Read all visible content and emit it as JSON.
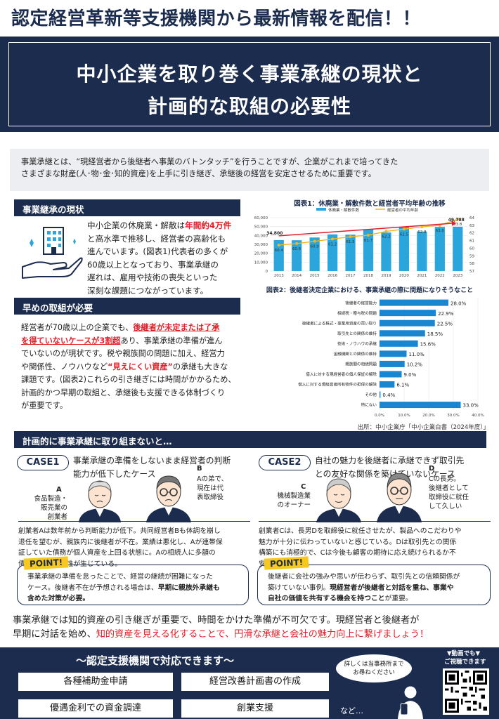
{
  "header": {
    "banner": "認定経営革新等支援機関から最新情報を配信！！",
    "title_line1": "中小企業を取り巻く事業承継の現状と",
    "title_line2": "計画的な取組の必要性"
  },
  "intro": {
    "line1": "事業承継とは、“現経営者から後継者へ事業のバトンタッチ”を行うことですが、企業がこれまで培ってきた",
    "line2": "さまざまな財産(人･物･金･知的資産)を上手に引き継ぎ、承継後の経営を安定させるために重要です。"
  },
  "section1": {
    "title": "事業継承の現状",
    "p1": "中小企業の休廃業・解散は",
    "p1_hl": "年間約4万件",
    "p2": "と高水準で推移し、経営者の高齢化も",
    "p3": "進んでいます。(図表1)代表者の多くが",
    "p4": "60歳以上となっており、事業承継の",
    "p5": "遅れは、雇用や技術の喪失といった",
    "p6": "深刻な課題につながっています。"
  },
  "section2": {
    "title": "早めの取組が必要",
    "l1a": "経営者が70歳以上の企業でも、",
    "l1b": "後継者が未定または了承",
    "l2a": "を得ていないケースが3割超",
    "l2b": "あり、事業承継の準備が進ん",
    "l3": "でいないのが現状です。税や親族間の問題に加え、経営力",
    "l4a": "や関係性、ノウハウなど",
    "l4b": "“見えにくい資産”",
    "l4c": "の承継も大きな",
    "l5": "課題です。(図表2)これらの引き継ぎには時間がかかるため、",
    "l6": "計画的かつ早期の取組と、承継後も支援できる体制づくり",
    "l7": "が重要です。"
  },
  "chart1": {
    "title": "図表1：休廃業・解散件数と経営者平均年齢の推移",
    "legend_bar": "休廃業・解散件数",
    "legend_line": "経営者の平均年齢"
  },
  "chart2": {
    "title": "図表2：後継者決定企業における、事業承継の際に問題になりそうなこと",
    "source": "出所：中小企業庁「中小企業白書（2024年度）」"
  },
  "chart_data": [
    {
      "type": "bar+line",
      "title": "図表1：休廃業・解散件数と経営者平均年齢の推移",
      "categories": [
        "2013",
        "2014",
        "2015",
        "2016",
        "2017",
        "2018",
        "2019",
        "2020",
        "2021",
        "2022",
        "2023"
      ],
      "series": [
        {
          "name": "休廃業・解散件数",
          "axis": "left",
          "values": [
            34800,
            34600,
            37700,
            41200,
            40900,
            46700,
            43300,
            49700,
            44400,
            49600,
            49788
          ],
          "color": "#2aa6dc"
        },
        {
          "name": "経営者の平均年齢",
          "axis": "right",
          "values": [
            60.4,
            60.6,
            60.9,
            61.2,
            61.5,
            61.7,
            62.2,
            62.5,
            62.8,
            63.0,
            63.8
          ],
          "color": "#f3b51e"
        }
      ],
      "ylim_left": [
        0,
        60000
      ],
      "yticks_left": [
        "0",
        "10,000",
        "20,000",
        "30,000",
        "40,000",
        "50,000",
        "60,000"
      ],
      "ylim_right": [
        57,
        64
      ],
      "yticks_right": [
        "57",
        "58",
        "59",
        "60",
        "61",
        "62",
        "63",
        "64"
      ],
      "data_labels_left": [
        {
          "index": 0,
          "text": "34,800"
        },
        {
          "index": 10,
          "text": "49,788"
        }
      ],
      "data_labels_right": [
        "60.4",
        "60.6",
        "60.9",
        "61.2",
        "61.5",
        "61.7",
        "62.2",
        "62.5",
        "62.8",
        "63.0",
        "63.8"
      ]
    },
    {
      "type": "bar",
      "orientation": "horizontal",
      "title": "図表2：後継者決定企業における、事業承継の際に問題になりそうなこと",
      "categories": [
        "後継者の経営能力",
        "相続税・贈与税の問題",
        "後継者による株式・事業用資産の買い取り",
        "取引先との関係の維持",
        "技術・ノウハウの承継",
        "金融機関との関係の維持",
        "親族間の相続問題",
        "借入に対する現経営者の個人保証の解除",
        "借入に対する現経営者所有物件の担保の解除",
        "その他",
        "特にない"
      ],
      "values": [
        28.0,
        22.9,
        22.5,
        18.5,
        15.6,
        11.0,
        10.2,
        9.0,
        6.1,
        0.4,
        33.0
      ],
      "value_labels": [
        "28.0%",
        "22.9%",
        "22.5%",
        "18.5%",
        "15.6%",
        "11.0%",
        "10.2%",
        "9.0%",
        "6.1%",
        "0.4%",
        "33.0%"
      ],
      "xlim": [
        0,
        40
      ],
      "xticks": [
        "0.0%",
        "10.0%",
        "20.0%",
        "30.0%",
        "40.0%"
      ],
      "color": "#1a86d0"
    }
  ],
  "section3": {
    "title": "計画的に事業承継に取り組まないと…"
  },
  "case1": {
    "badge": "CASE1",
    "heading1": "事業承継の準備をしないまま経営者の判断",
    "heading2": "能力が低下したケース",
    "a_label": "A",
    "a_desc1": "食品製造・",
    "a_desc2": "販売業の",
    "a_desc3": "創業者",
    "b_label": "B",
    "b_desc1": "Aの弟で、",
    "b_desc2": "現在は代",
    "b_desc3": "表取締役",
    "text1": "創業者Aは数年前から判断能力が低下。共同経営者Bも体調を崩し",
    "text2": "退任を望むが、親族内に後継者が不在。業績は悪化し、Aが連帯保",
    "text3": "証していた債務が個人資産を上回る状態に。Aの相続人に多額の",
    "text4": "債務が残る可能性が生じている。",
    "point": "POINT!",
    "p1": "事業承継の準備を怠ったことで、経営の継続が困難になった",
    "p2": "ケース。後継者不在が予想される場合は、",
    "p2b": "早期に親族外承継も",
    "p3": "含めた対策が必要。"
  },
  "case2": {
    "badge": "CASE2",
    "heading1": "自社の魅力を後継者に承継できず取引先",
    "heading2": "との友好な関係を築けていないケース",
    "c_label": "C",
    "c_desc1": "機械製造業",
    "c_desc2": "のオーナー",
    "d_label": "D",
    "d_desc1": "Cの長男。",
    "d_desc2": "後継者として",
    "d_desc3": "取締役に就任",
    "d_desc4": "して久しい",
    "text1": "創業者Cは、長男Dを取締役に就任させたが、製品へのこだわりや",
    "text2": "魅力が十分に伝わっていないと感じている。Dは取引先との関係",
    "text3": "構築にも消極的で、Cは今後も顧客の期待に応え続けられるか不",
    "text4": "安を抱いている。",
    "point": "POINT!",
    "p1": "後継者に会社の強みや思いが伝わらず、取引先との信頼関係が",
    "p2": "築けていない事例。",
    "p2b": "現経営者が後継者と対話を重ね、事業や",
    "p3": "自社の価値を共有する機会を持つこと",
    "p3b": "が重要。"
  },
  "summary": {
    "l1": "事業承継では知的資産の引き継ぎが重要で、時間をかけた準備が不可欠です。現経営者と後継者が",
    "l2a": "早期に対話を始め、",
    "l2b": "知的資産を見える化することで、円滑な承継と会社の魅力向上に繋げましょう！"
  },
  "footer": {
    "title": "～認定支援機関で対応できます～",
    "svc1": "各種補助金申請",
    "svc2": "経営改善計画書の作成",
    "svc3": "優遇金利での資金調達",
    "svc4": "創業支援",
    "bubble1": "詳しくは当事務所まで",
    "bubble2": "お尋ねください",
    "etc": "など…",
    "video1": "▼動画でも▼",
    "video2": "ご視聴できます"
  },
  "colors": {
    "navy": "#1b2c4e",
    "red": "#e0202a",
    "bar_blue": "#2aa6dc",
    "line_gold": "#f3b51e",
    "h_bar": "#1a86d0"
  }
}
